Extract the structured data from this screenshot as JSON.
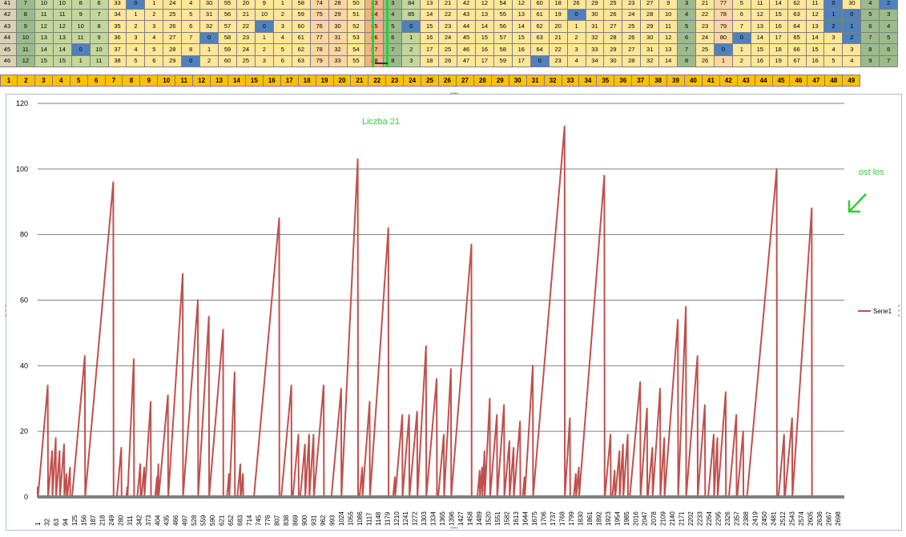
{
  "grid": {
    "rows": [
      [
        "41",
        "7",
        "10",
        "10",
        "8",
        "6",
        "33",
        "0",
        "1",
        "24",
        "4",
        "30",
        "55",
        "20",
        "9",
        "1",
        "58",
        "74",
        "28",
        "50",
        "83",
        "3",
        "84",
        "13",
        "21",
        "42",
        "12",
        "54",
        "12",
        "60",
        "18",
        "26",
        "29",
        "25",
        "23",
        "27",
        "9",
        "3",
        "21",
        "77",
        "5",
        "11",
        "14",
        "62",
        "11",
        "0",
        "30",
        "4",
        "2"
      ],
      [
        "42",
        "8",
        "11",
        "11",
        "9",
        "7",
        "34",
        "1",
        "2",
        "25",
        "5",
        "31",
        "56",
        "21",
        "10",
        "2",
        "59",
        "75",
        "29",
        "51",
        "84",
        "4",
        "85",
        "14",
        "22",
        "43",
        "13",
        "55",
        "13",
        "61",
        "19",
        "0",
        "30",
        "26",
        "24",
        "28",
        "10",
        "4",
        "22",
        "78",
        "6",
        "12",
        "15",
        "63",
        "12",
        "1",
        "0",
        "5",
        "3"
      ],
      [
        "43",
        "9",
        "12",
        "12",
        "10",
        "8",
        "35",
        "2",
        "3",
        "26",
        "6",
        "32",
        "57",
        "22",
        "0",
        "3",
        "60",
        "76",
        "30",
        "52",
        "85",
        "5",
        "0",
        "15",
        "23",
        "44",
        "14",
        "56",
        "14",
        "62",
        "20",
        "1",
        "31",
        "27",
        "25",
        "29",
        "11",
        "5",
        "23",
        "79",
        "7",
        "13",
        "16",
        "64",
        "13",
        "2",
        "1",
        "6",
        "4"
      ],
      [
        "44",
        "10",
        "13",
        "13",
        "11",
        "9",
        "36",
        "3",
        "4",
        "27",
        "7",
        "0",
        "58",
        "23",
        "1",
        "4",
        "61",
        "77",
        "31",
        "53",
        "86",
        "6",
        "1",
        "16",
        "24",
        "45",
        "15",
        "57",
        "15",
        "63",
        "21",
        "2",
        "32",
        "28",
        "26",
        "30",
        "12",
        "6",
        "24",
        "80",
        "0",
        "14",
        "17",
        "65",
        "14",
        "3",
        "2",
        "7",
        "5"
      ],
      [
        "45",
        "11",
        "14",
        "14",
        "0",
        "10",
        "37",
        "4",
        "5",
        "28",
        "8",
        "1",
        "59",
        "24",
        "2",
        "5",
        "62",
        "78",
        "32",
        "54",
        "87",
        "7",
        "2",
        "17",
        "25",
        "46",
        "16",
        "58",
        "16",
        "64",
        "22",
        "3",
        "33",
        "29",
        "27",
        "31",
        "13",
        "7",
        "25",
        "0",
        "1",
        "15",
        "18",
        "66",
        "15",
        "4",
        "3",
        "8",
        "6"
      ],
      [
        "46",
        "12",
        "15",
        "15",
        "1",
        "11",
        "38",
        "5",
        "6",
        "29",
        "0",
        "2",
        "60",
        "25",
        "3",
        "6",
        "63",
        "79",
        "33",
        "55",
        "88",
        "8",
        "3",
        "18",
        "26",
        "47",
        "17",
        "59",
        "17",
        "0",
        "23",
        "4",
        "34",
        "30",
        "28",
        "32",
        "14",
        "8",
        "26",
        "1",
        "2",
        "16",
        "19",
        "67",
        "16",
        "5",
        "4",
        "9",
        "7"
      ]
    ]
  },
  "number_row": [
    "1",
    "2",
    "3",
    "4",
    "5",
    "6",
    "7",
    "8",
    "9",
    "10",
    "11",
    "12",
    "13",
    "14",
    "15",
    "16",
    "17",
    "18",
    "19",
    "20",
    "21",
    "22",
    "23",
    "24",
    "25",
    "26",
    "27",
    "28",
    "29",
    "30",
    "31",
    "32",
    "33",
    "34",
    "35",
    "36",
    "37",
    "38",
    "39",
    "40",
    "41",
    "42",
    "43",
    "44",
    "45",
    "46",
    "47",
    "48",
    "49"
  ],
  "colors": {
    "series": "#c0504d",
    "highlight": "#33cc33",
    "number_row": "#ffc000"
  },
  "chart": {
    "annotation_title": "Liczba 21",
    "annotation_last": "ost los",
    "legend_label": "Serie1",
    "arrow_icon": "arrow-icon"
  },
  "chart_data": {
    "type": "line",
    "ylim": [
      0,
      120
    ],
    "yticks": [
      "0",
      "20",
      "40",
      "60",
      "80",
      "100",
      "120"
    ],
    "xlim": [
      1,
      2720
    ],
    "xticks": [
      "1",
      "32",
      "63",
      "94",
      "125",
      "156",
      "187",
      "218",
      "249",
      "280",
      "311",
      "342",
      "373",
      "404",
      "435",
      "466",
      "497",
      "528",
      "559",
      "590",
      "621",
      "652",
      "683",
      "714",
      "745",
      "776",
      "807",
      "838",
      "869",
      "900",
      "931",
      "962",
      "993",
      "1024",
      "1055",
      "1086",
      "1117",
      "1148",
      "1179",
      "1210",
      "1241",
      "1272",
      "1303",
      "1334",
      "1365",
      "1396",
      "1427",
      "1458",
      "1489",
      "1520",
      "1551",
      "1582",
      "1613",
      "1644",
      "1675",
      "1706",
      "1737",
      "1768",
      "1799",
      "1830",
      "1861",
      "1892",
      "1923",
      "1954",
      "1985",
      "2016",
      "2047",
      "2078",
      "2109",
      "2140",
      "2171",
      "2202",
      "2233",
      "2264",
      "2295",
      "2326",
      "2357",
      "2388",
      "2419",
      "2450",
      "2481",
      "2512",
      "2543",
      "2574",
      "2605",
      "2636",
      "2667",
      "2698"
    ],
    "grid": true,
    "legend_position": "right",
    "series": [
      {
        "name": "Serie1",
        "peaks": [
          [
            1,
            3
          ],
          [
            35,
            34
          ],
          [
            50,
            14
          ],
          [
            62,
            18
          ],
          [
            75,
            14
          ],
          [
            90,
            16
          ],
          [
            98,
            7
          ],
          [
            110,
            9
          ],
          [
            160,
            43
          ],
          [
            256,
            96
          ],
          [
            283,
            15
          ],
          [
            303,
            3
          ],
          [
            325,
            42
          ],
          [
            347,
            10
          ],
          [
            360,
            9
          ],
          [
            382,
            29
          ],
          [
            403,
            6
          ],
          [
            408,
            10
          ],
          [
            440,
            31
          ],
          [
            490,
            68
          ],
          [
            541,
            60
          ],
          [
            578,
            55
          ],
          [
            626,
            51
          ],
          [
            646,
            7
          ],
          [
            665,
            38
          ],
          [
            684,
            10
          ],
          [
            693,
            7
          ],
          [
            815,
            85
          ],
          [
            856,
            34
          ],
          [
            880,
            19
          ],
          [
            902,
            16
          ],
          [
            916,
            19
          ],
          [
            931,
            19
          ],
          [
            965,
            34
          ],
          [
            1024,
            33
          ],
          [
            1080,
            103
          ],
          [
            1095,
            9
          ],
          [
            1120,
            29
          ],
          [
            1183,
            82
          ],
          [
            1205,
            6
          ],
          [
            1230,
            25
          ],
          [
            1253,
            25
          ],
          [
            1280,
            26
          ],
          [
            1310,
            46
          ],
          [
            1346,
            36
          ],
          [
            1370,
            19
          ],
          [
            1394,
            39
          ],
          [
            1463,
            77
          ],
          [
            1491,
            8
          ],
          [
            1499,
            9
          ],
          [
            1507,
            14
          ],
          [
            1525,
            30
          ],
          [
            1549,
            25
          ],
          [
            1573,
            28
          ],
          [
            1591,
            17
          ],
          [
            1605,
            15
          ],
          [
            1627,
            23
          ],
          [
            1642,
            6
          ],
          [
            1670,
            40
          ],
          [
            1777,
            113
          ],
          [
            1795,
            24
          ],
          [
            1815,
            7
          ],
          [
            1825,
            9
          ],
          [
            1911,
            98
          ],
          [
            1932,
            19
          ],
          [
            1946,
            8
          ],
          [
            1962,
            14
          ],
          [
            1974,
            16
          ],
          [
            1990,
            19
          ],
          [
            2032,
            35
          ],
          [
            2055,
            27
          ],
          [
            2073,
            15
          ],
          [
            2099,
            33
          ],
          [
            2113,
            18
          ],
          [
            2159,
            54
          ],
          [
            2186,
            58
          ],
          [
            2225,
            43
          ],
          [
            2250,
            28
          ],
          [
            2280,
            19
          ],
          [
            2292,
            18
          ],
          [
            2320,
            32
          ],
          [
            2356,
            25
          ],
          [
            2379,
            20
          ],
          [
            2492,
            100
          ],
          [
            2517,
            19
          ],
          [
            2544,
            24
          ],
          [
            2610,
            88
          ]
        ]
      }
    ]
  }
}
